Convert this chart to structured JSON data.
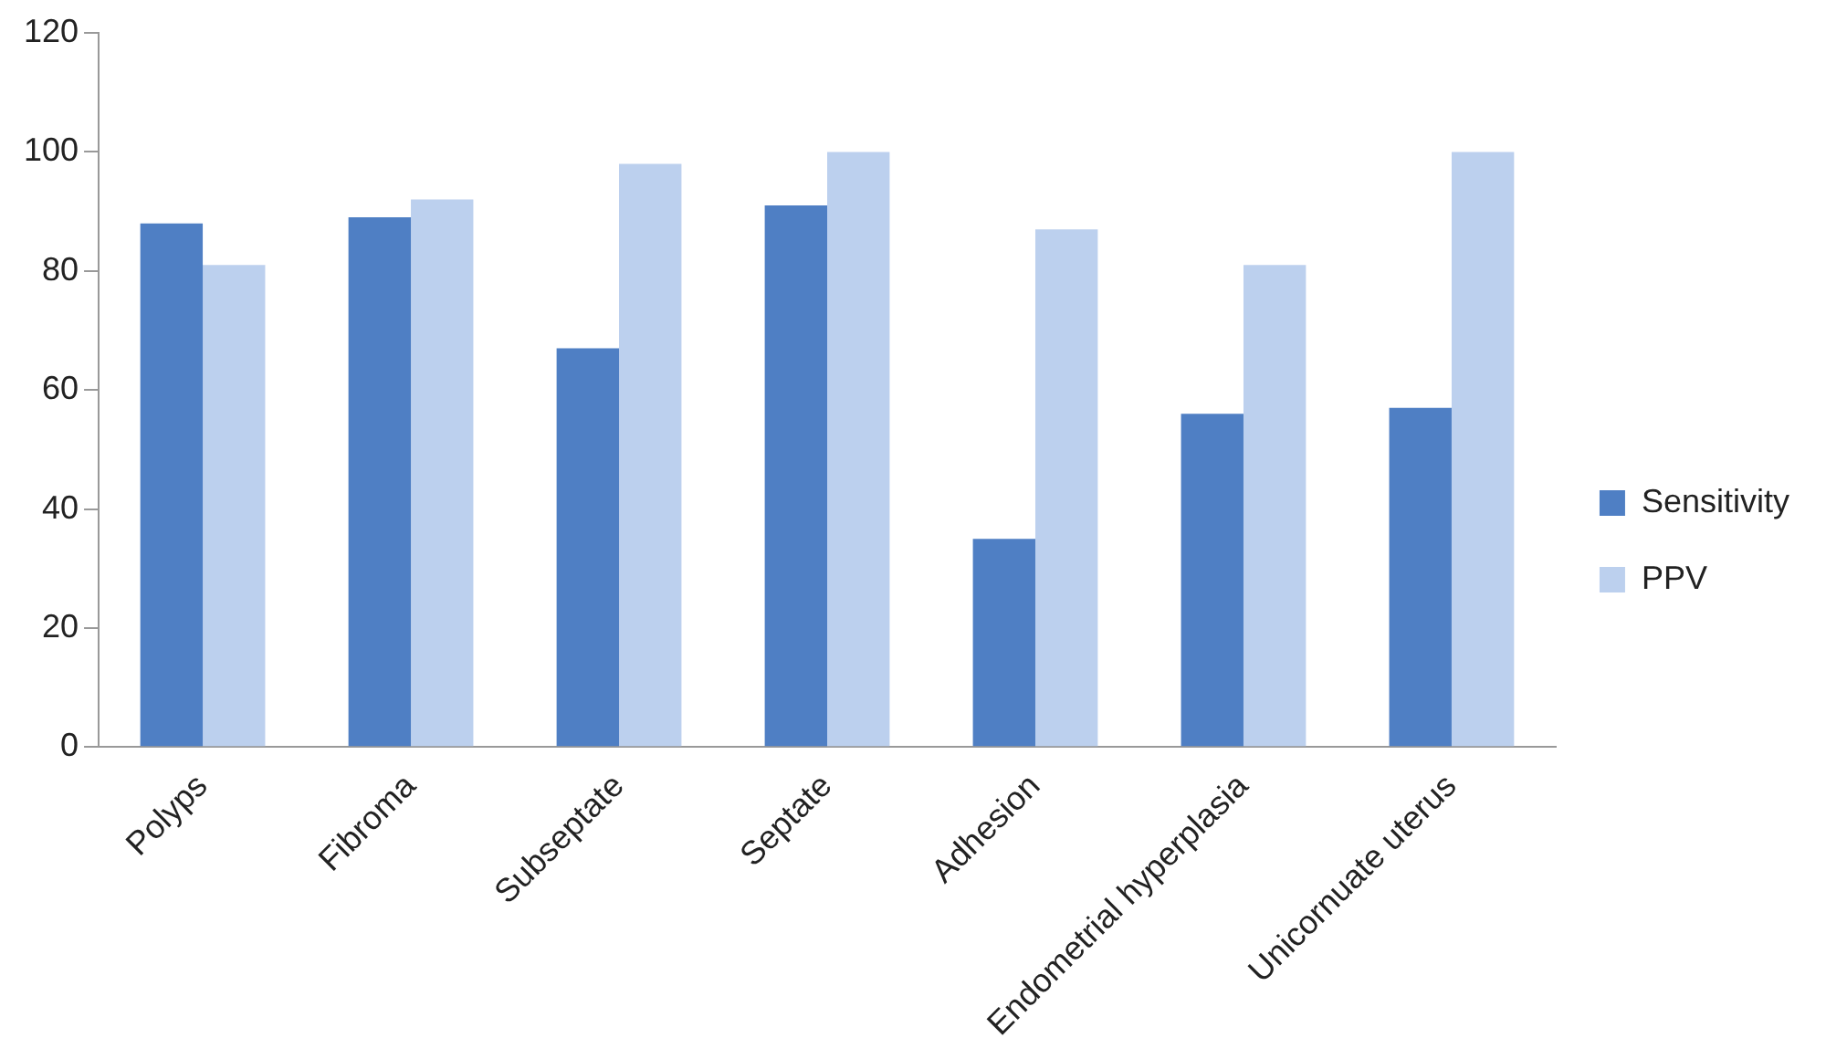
{
  "chart_data": {
    "type": "bar",
    "categories": [
      "Polyps",
      "Fibroma",
      "Subseptate",
      "Septate",
      "Adhesion",
      "Endometrial hyperplasia",
      "Unicornuate uterus"
    ],
    "series": [
      {
        "name": "Sensitivity",
        "color": "#4f7fc4",
        "values": [
          88,
          89,
          67,
          91,
          35,
          56,
          57
        ]
      },
      {
        "name": "PPV",
        "color": "#bcd0ee",
        "values": [
          81,
          92,
          98,
          100,
          87,
          81,
          100
        ]
      }
    ],
    "ylim": [
      0,
      120
    ],
    "yticks": [
      0,
      20,
      40,
      60,
      80,
      100,
      120
    ],
    "grid": false,
    "legend": "right"
  }
}
